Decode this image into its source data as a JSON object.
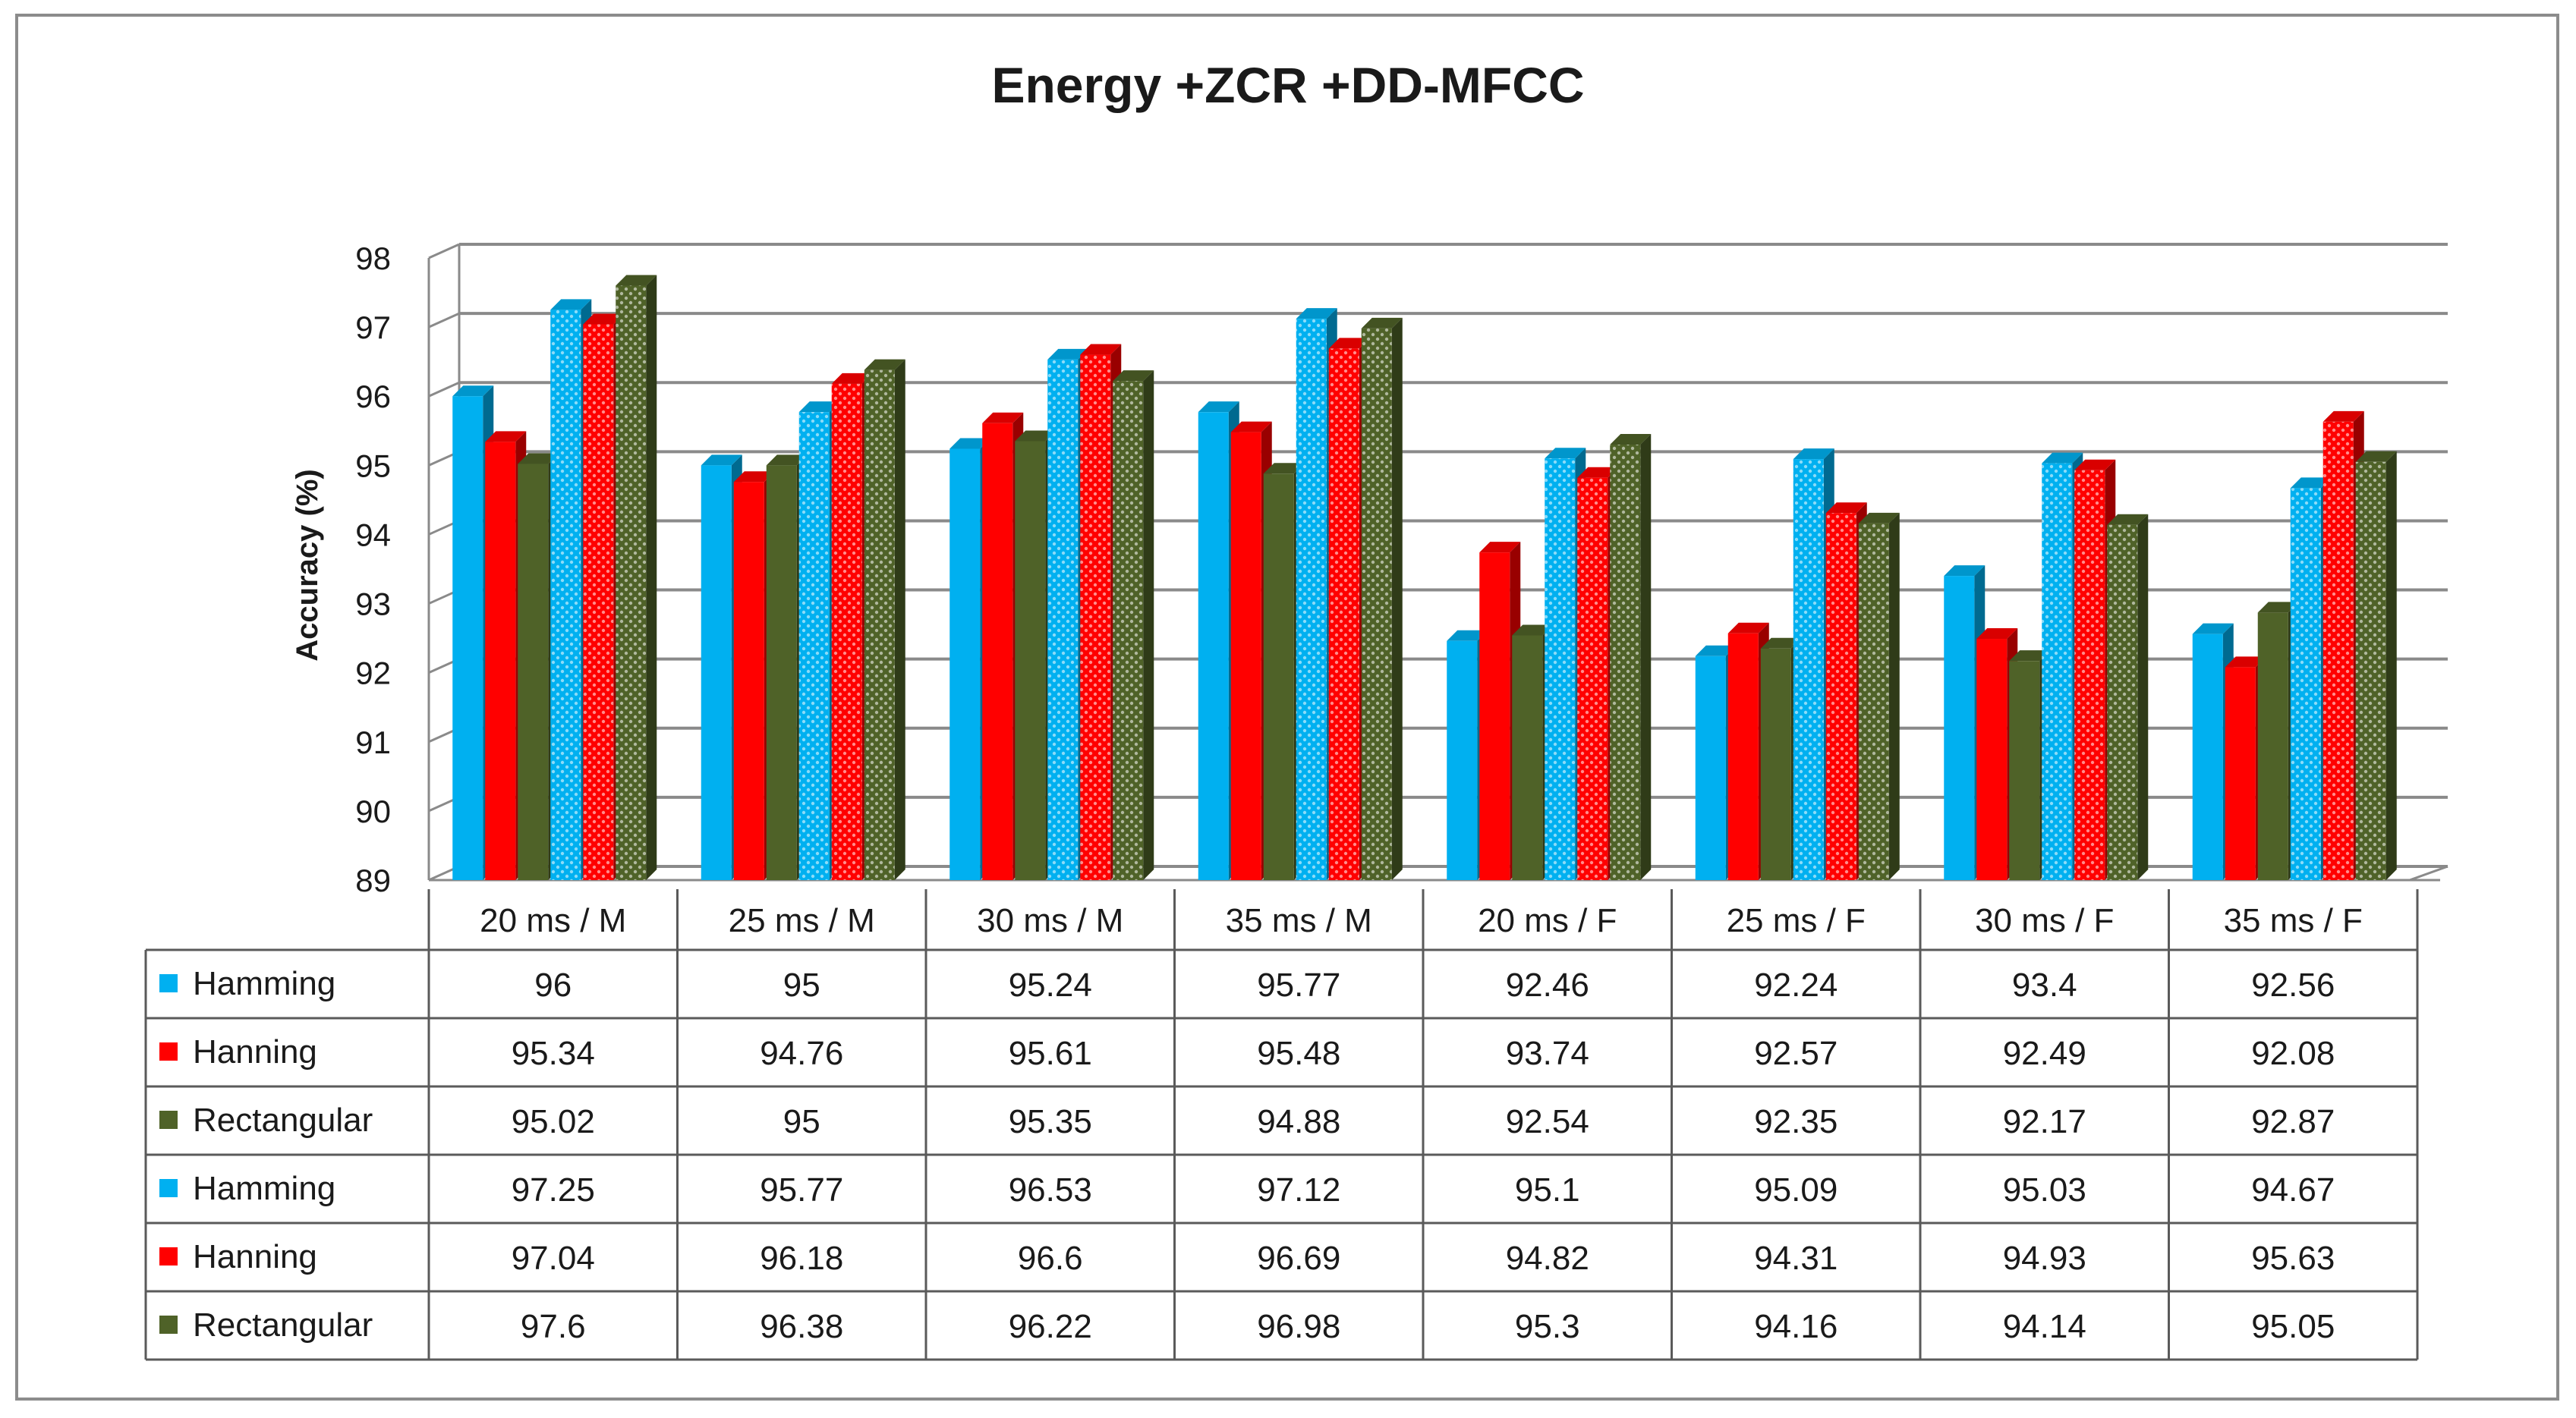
{
  "chart_data": {
    "type": "bar",
    "title": "Energy +ZCR +DD-MFCC",
    "xlabel": "",
    "ylabel": "Accuracy  (%)",
    "ylim": [
      89,
      98
    ],
    "yticks": [
      "98",
      "97",
      "96",
      "95",
      "94",
      "93",
      "92",
      "91",
      "90",
      "89"
    ],
    "grid": true,
    "legend": "data-table",
    "categories": [
      "20 ms / M",
      "25 ms / M",
      "30 ms / M",
      "35 ms / M",
      "20 ms / F",
      "25 ms / F",
      "30 ms / F",
      "35 ms / F"
    ],
    "table_rows": [
      "96",
      "95",
      "95.24",
      "95.77",
      "92.46",
      "92.24",
      "93.4",
      "92.56"
    ],
    "series": [
      {
        "name": "Hamming",
        "color": "#00b0f0",
        "pattern": "solid",
        "values": [
          96,
          95,
          95.24,
          95.77,
          92.46,
          92.24,
          93.4,
          92.56
        ],
        "labels": [
          "96",
          "95",
          "95.24",
          "95.77",
          "92.46",
          "92.24",
          "93.4",
          "92.56"
        ]
      },
      {
        "name": "Hanning",
        "color": "#ff0000",
        "pattern": "solid",
        "values": [
          95.34,
          94.76,
          95.61,
          95.48,
          93.74,
          92.57,
          92.49,
          92.08
        ],
        "labels": [
          "95.34",
          "94.76",
          "95.61",
          "95.48",
          "93.74",
          "92.57",
          "92.49",
          "92.08"
        ]
      },
      {
        "name": "Rectangular",
        "color": "#4f6228",
        "pattern": "solid",
        "values": [
          95.02,
          95,
          95.35,
          94.88,
          92.54,
          92.35,
          92.17,
          92.87
        ],
        "labels": [
          "95.02",
          "95",
          "95.35",
          "94.88",
          "92.54",
          "92.35",
          "92.17",
          "92.87"
        ]
      },
      {
        "name": "Hamming",
        "color": "#00b0f0",
        "pattern": "dotted",
        "values": [
          97.25,
          95.77,
          96.53,
          97.12,
          95.1,
          95.09,
          95.03,
          94.67
        ],
        "labels": [
          "97.25",
          "95.77",
          "96.53",
          "97.12",
          "95.1",
          "95.09",
          "95.03",
          "94.67"
        ]
      },
      {
        "name": "Hanning",
        "color": "#ff0000",
        "pattern": "dotted",
        "values": [
          97.04,
          96.18,
          96.6,
          96.69,
          94.82,
          94.31,
          94.93,
          95.63
        ],
        "labels": [
          "97.04",
          "96.18",
          "96.6",
          "96.69",
          "94.82",
          "94.31",
          "94.93",
          "95.63"
        ]
      },
      {
        "name": "Rectangular",
        "color": "#4f6228",
        "pattern": "dotted",
        "values": [
          97.6,
          96.38,
          96.22,
          96.98,
          95.3,
          94.16,
          94.14,
          95.05
        ],
        "labels": [
          "97.6",
          "96.38",
          "96.22",
          "96.98",
          "95.3",
          "94.16",
          "94.14",
          "95.05"
        ]
      }
    ]
  }
}
